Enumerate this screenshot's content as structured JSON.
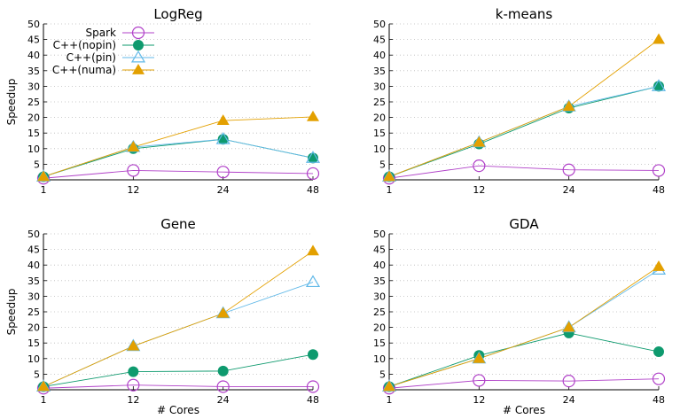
{
  "colors": {
    "Spark": "#b040c8",
    "C++(nopin)": "#0e9a6e",
    "C++(pin)": "#62b9e8",
    "C++(numa)": "#e3a000"
  },
  "legend": {
    "placement": "top-left of first panel",
    "entries": [
      "Spark",
      "C++(nopin)",
      "C++(pin)",
      "C++(numa)"
    ]
  },
  "chart_data": [
    {
      "type": "line",
      "title": "LogReg",
      "xlabel": "",
      "ylabel": "Speedup",
      "categories": [
        "1",
        "12",
        "24",
        "48"
      ],
      "yticks": [
        "5",
        "10",
        "15",
        "20",
        "25",
        "30",
        "35",
        "40",
        "45",
        "50"
      ],
      "ylim": [
        0,
        50
      ],
      "grid": "dotted horizontal",
      "series": [
        {
          "name": "Spark",
          "values": [
            0.5,
            3,
            2.5,
            2
          ]
        },
        {
          "name": "C++(nopin)",
          "values": [
            1,
            10,
            13,
            7
          ]
        },
        {
          "name": "C++(pin)",
          "values": [
            1,
            10.5,
            13,
            7
          ]
        },
        {
          "name": "C++(numa)",
          "values": [
            1,
            10.5,
            19,
            20.2
          ]
        }
      ]
    },
    {
      "type": "line",
      "title": "k-means",
      "xlabel": "",
      "ylabel": "",
      "categories": [
        "1",
        "12",
        "24",
        "48"
      ],
      "yticks": [
        "5",
        "10",
        "15",
        "20",
        "25",
        "30",
        "35",
        "40",
        "45",
        "50"
      ],
      "ylim": [
        0,
        50
      ],
      "grid": "dotted horizontal",
      "series": [
        {
          "name": "Spark",
          "values": [
            0.5,
            4.5,
            3.2,
            3
          ]
        },
        {
          "name": "C++(nopin)",
          "values": [
            1,
            11.5,
            23,
            30
          ]
        },
        {
          "name": "C++(pin)",
          "values": [
            1,
            12,
            23.5,
            30
          ]
        },
        {
          "name": "C++(numa)",
          "values": [
            1,
            12,
            23.5,
            45
          ]
        }
      ]
    },
    {
      "type": "line",
      "title": "Gene",
      "xlabel": "# Cores",
      "ylabel": "Speedup",
      "categories": [
        "1",
        "12",
        "24",
        "48"
      ],
      "yticks": [
        "5",
        "10",
        "15",
        "20",
        "25",
        "30",
        "35",
        "40",
        "45",
        "50"
      ],
      "ylim": [
        0,
        50
      ],
      "grid": "dotted horizontal",
      "series": [
        {
          "name": "Spark",
          "values": [
            0.5,
            1.5,
            1,
            1
          ]
        },
        {
          "name": "C++(nopin)",
          "values": [
            1,
            5.8,
            6,
            11.3
          ]
        },
        {
          "name": "C++(pin)",
          "values": [
            1,
            14,
            24.5,
            34.5
          ]
        },
        {
          "name": "C++(numa)",
          "values": [
            1,
            14,
            24.5,
            44.5
          ]
        }
      ]
    },
    {
      "type": "line",
      "title": "GDA",
      "xlabel": "# Cores",
      "ylabel": "",
      "categories": [
        "1",
        "12",
        "24",
        "48"
      ],
      "yticks": [
        "5",
        "10",
        "15",
        "20",
        "25",
        "30",
        "35",
        "40",
        "45",
        "50"
      ],
      "ylim": [
        0,
        50
      ],
      "grid": "dotted horizontal",
      "series": [
        {
          "name": "Spark",
          "values": [
            0.5,
            3,
            2.8,
            3.5
          ]
        },
        {
          "name": "C++(nopin)",
          "values": [
            1,
            11,
            18.2,
            12.2
          ]
        },
        {
          "name": "C++(pin)",
          "values": [
            1,
            10,
            20,
            38.5
          ]
        },
        {
          "name": "C++(numa)",
          "values": [
            1,
            10,
            20,
            39.5
          ]
        }
      ]
    }
  ]
}
